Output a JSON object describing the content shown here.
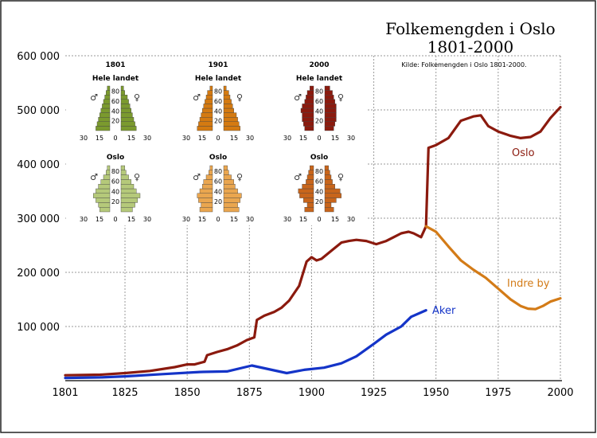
{
  "chart_data": {
    "type": "line",
    "title": "Folkemengden i Oslo",
    "subtitle": "1801-2000",
    "source": "Kilde: Folkemengden i Oslo 1801-2000.",
    "xlim": [
      1801,
      2000
    ],
    "ylim": [
      0,
      600000
    ],
    "x_ticks": [
      "1801",
      "1825",
      "1850",
      "1875",
      "1900",
      "1925",
      "1950",
      "1975",
      "2000"
    ],
    "y_ticks": [
      "600 000",
      "500 000",
      "400 000",
      "300 000",
      "200 000",
      "100 000"
    ],
    "grid": true,
    "series": [
      {
        "name": "Oslo",
        "color": "#8B1A0E",
        "points": [
          [
            1801,
            10000
          ],
          [
            1815,
            11000
          ],
          [
            1825,
            14000
          ],
          [
            1835,
            18000
          ],
          [
            1845,
            25000
          ],
          [
            1850,
            30000
          ],
          [
            1853,
            30000
          ],
          [
            1857,
            35000
          ],
          [
            1858,
            47000
          ],
          [
            1862,
            53000
          ],
          [
            1866,
            58000
          ],
          [
            1870,
            65000
          ],
          [
            1874,
            75000
          ],
          [
            1877,
            80000
          ],
          [
            1878,
            112000
          ],
          [
            1881,
            120000
          ],
          [
            1885,
            127000
          ],
          [
            1888,
            135000
          ],
          [
            1891,
            148000
          ],
          [
            1895,
            175000
          ],
          [
            1898,
            220000
          ],
          [
            1900,
            228000
          ],
          [
            1902,
            222000
          ],
          [
            1904,
            225000
          ],
          [
            1908,
            240000
          ],
          [
            1912,
            255000
          ],
          [
            1915,
            258000
          ],
          [
            1918,
            260000
          ],
          [
            1922,
            258000
          ],
          [
            1926,
            252000
          ],
          [
            1930,
            258000
          ],
          [
            1933,
            265000
          ],
          [
            1936,
            272000
          ],
          [
            1939,
            275000
          ],
          [
            1941,
            272000
          ],
          [
            1944,
            265000
          ],
          [
            1946,
            285000
          ],
          [
            1947,
            430000
          ],
          [
            1950,
            435000
          ],
          [
            1955,
            448000
          ],
          [
            1960,
            480000
          ],
          [
            1965,
            488000
          ],
          [
            1968,
            490000
          ],
          [
            1971,
            470000
          ],
          [
            1975,
            460000
          ],
          [
            1980,
            452000
          ],
          [
            1984,
            448000
          ],
          [
            1988,
            450000
          ],
          [
            1992,
            460000
          ],
          [
            1996,
            485000
          ],
          [
            2000,
            505000
          ]
        ]
      },
      {
        "name": "Indre by",
        "color": "#D37B17",
        "points": [
          [
            1946,
            285000
          ],
          [
            1950,
            275000
          ],
          [
            1955,
            248000
          ],
          [
            1960,
            222000
          ],
          [
            1965,
            205000
          ],
          [
            1970,
            190000
          ],
          [
            1975,
            170000
          ],
          [
            1980,
            150000
          ],
          [
            1984,
            138000
          ],
          [
            1987,
            133000
          ],
          [
            1990,
            132000
          ],
          [
            1993,
            138000
          ],
          [
            1996,
            146000
          ],
          [
            2000,
            152000
          ]
        ]
      },
      {
        "name": "Aker",
        "color": "#1434C8",
        "points": [
          [
            1801,
            5000
          ],
          [
            1815,
            6000
          ],
          [
            1825,
            8000
          ],
          [
            1840,
            12000
          ],
          [
            1855,
            16000
          ],
          [
            1866,
            17000
          ],
          [
            1876,
            28000
          ],
          [
            1890,
            14000
          ],
          [
            1897,
            20000
          ],
          [
            1905,
            24000
          ],
          [
            1912,
            32000
          ],
          [
            1918,
            45000
          ],
          [
            1925,
            68000
          ],
          [
            1930,
            85000
          ],
          [
            1936,
            100000
          ],
          [
            1940,
            118000
          ],
          [
            1946,
            130000
          ]
        ]
      }
    ],
    "insets": [
      {
        "year": "1801",
        "region": "Hele landet",
        "color": "#7B9A2E",
        "male": [
          11,
          10,
          9,
          8,
          7,
          6,
          5,
          4,
          3,
          2
        ],
        "female": [
          12,
          11,
          10,
          9,
          8,
          7,
          6,
          5,
          3,
          2
        ]
      },
      {
        "year": "1901",
        "region": "Hele landet",
        "color": "#D47A11",
        "male": [
          12,
          11,
          10,
          9,
          8,
          7,
          6,
          5,
          4,
          2
        ],
        "female": [
          13,
          12,
          11,
          10,
          8,
          7,
          6,
          5,
          4,
          2
        ]
      },
      {
        "year": "2000",
        "region": "Hele landet",
        "color": "#8B1A0E",
        "male": [
          7,
          8,
          9,
          9,
          10,
          9,
          7,
          6,
          5,
          3
        ],
        "female": [
          7,
          8,
          9,
          9,
          9,
          9,
          8,
          7,
          6,
          4
        ]
      },
      {
        "year": "",
        "region": "Oslo",
        "color": "#B5C97A",
        "male": [
          8,
          9,
          11,
          13,
          11,
          9,
          7,
          5,
          3,
          2
        ],
        "female": [
          9,
          11,
          13,
          15,
          12,
          10,
          8,
          6,
          4,
          3
        ]
      },
      {
        "year": "",
        "region": "Oslo",
        "color": "#EAA64F",
        "male": [
          10,
          9,
          11,
          12,
          10,
          8,
          7,
          5,
          3,
          2
        ],
        "female": [
          12,
          11,
          13,
          14,
          11,
          9,
          8,
          6,
          4,
          3
        ]
      },
      {
        "year": "",
        "region": "Oslo",
        "color": "#C8651B",
        "male": [
          7,
          5,
          8,
          11,
          12,
          9,
          6,
          5,
          4,
          3
        ],
        "female": [
          7,
          5,
          9,
          13,
          12,
          8,
          6,
          5,
          4,
          3
        ]
      }
    ],
    "inset_y_ticks": [
      "80",
      "60",
      "40",
      "20"
    ],
    "inset_x_ticks": [
      "30",
      "15",
      "0",
      "15",
      "30"
    ],
    "inset_male_symbol": "♂",
    "inset_female_symbol": "♀"
  }
}
